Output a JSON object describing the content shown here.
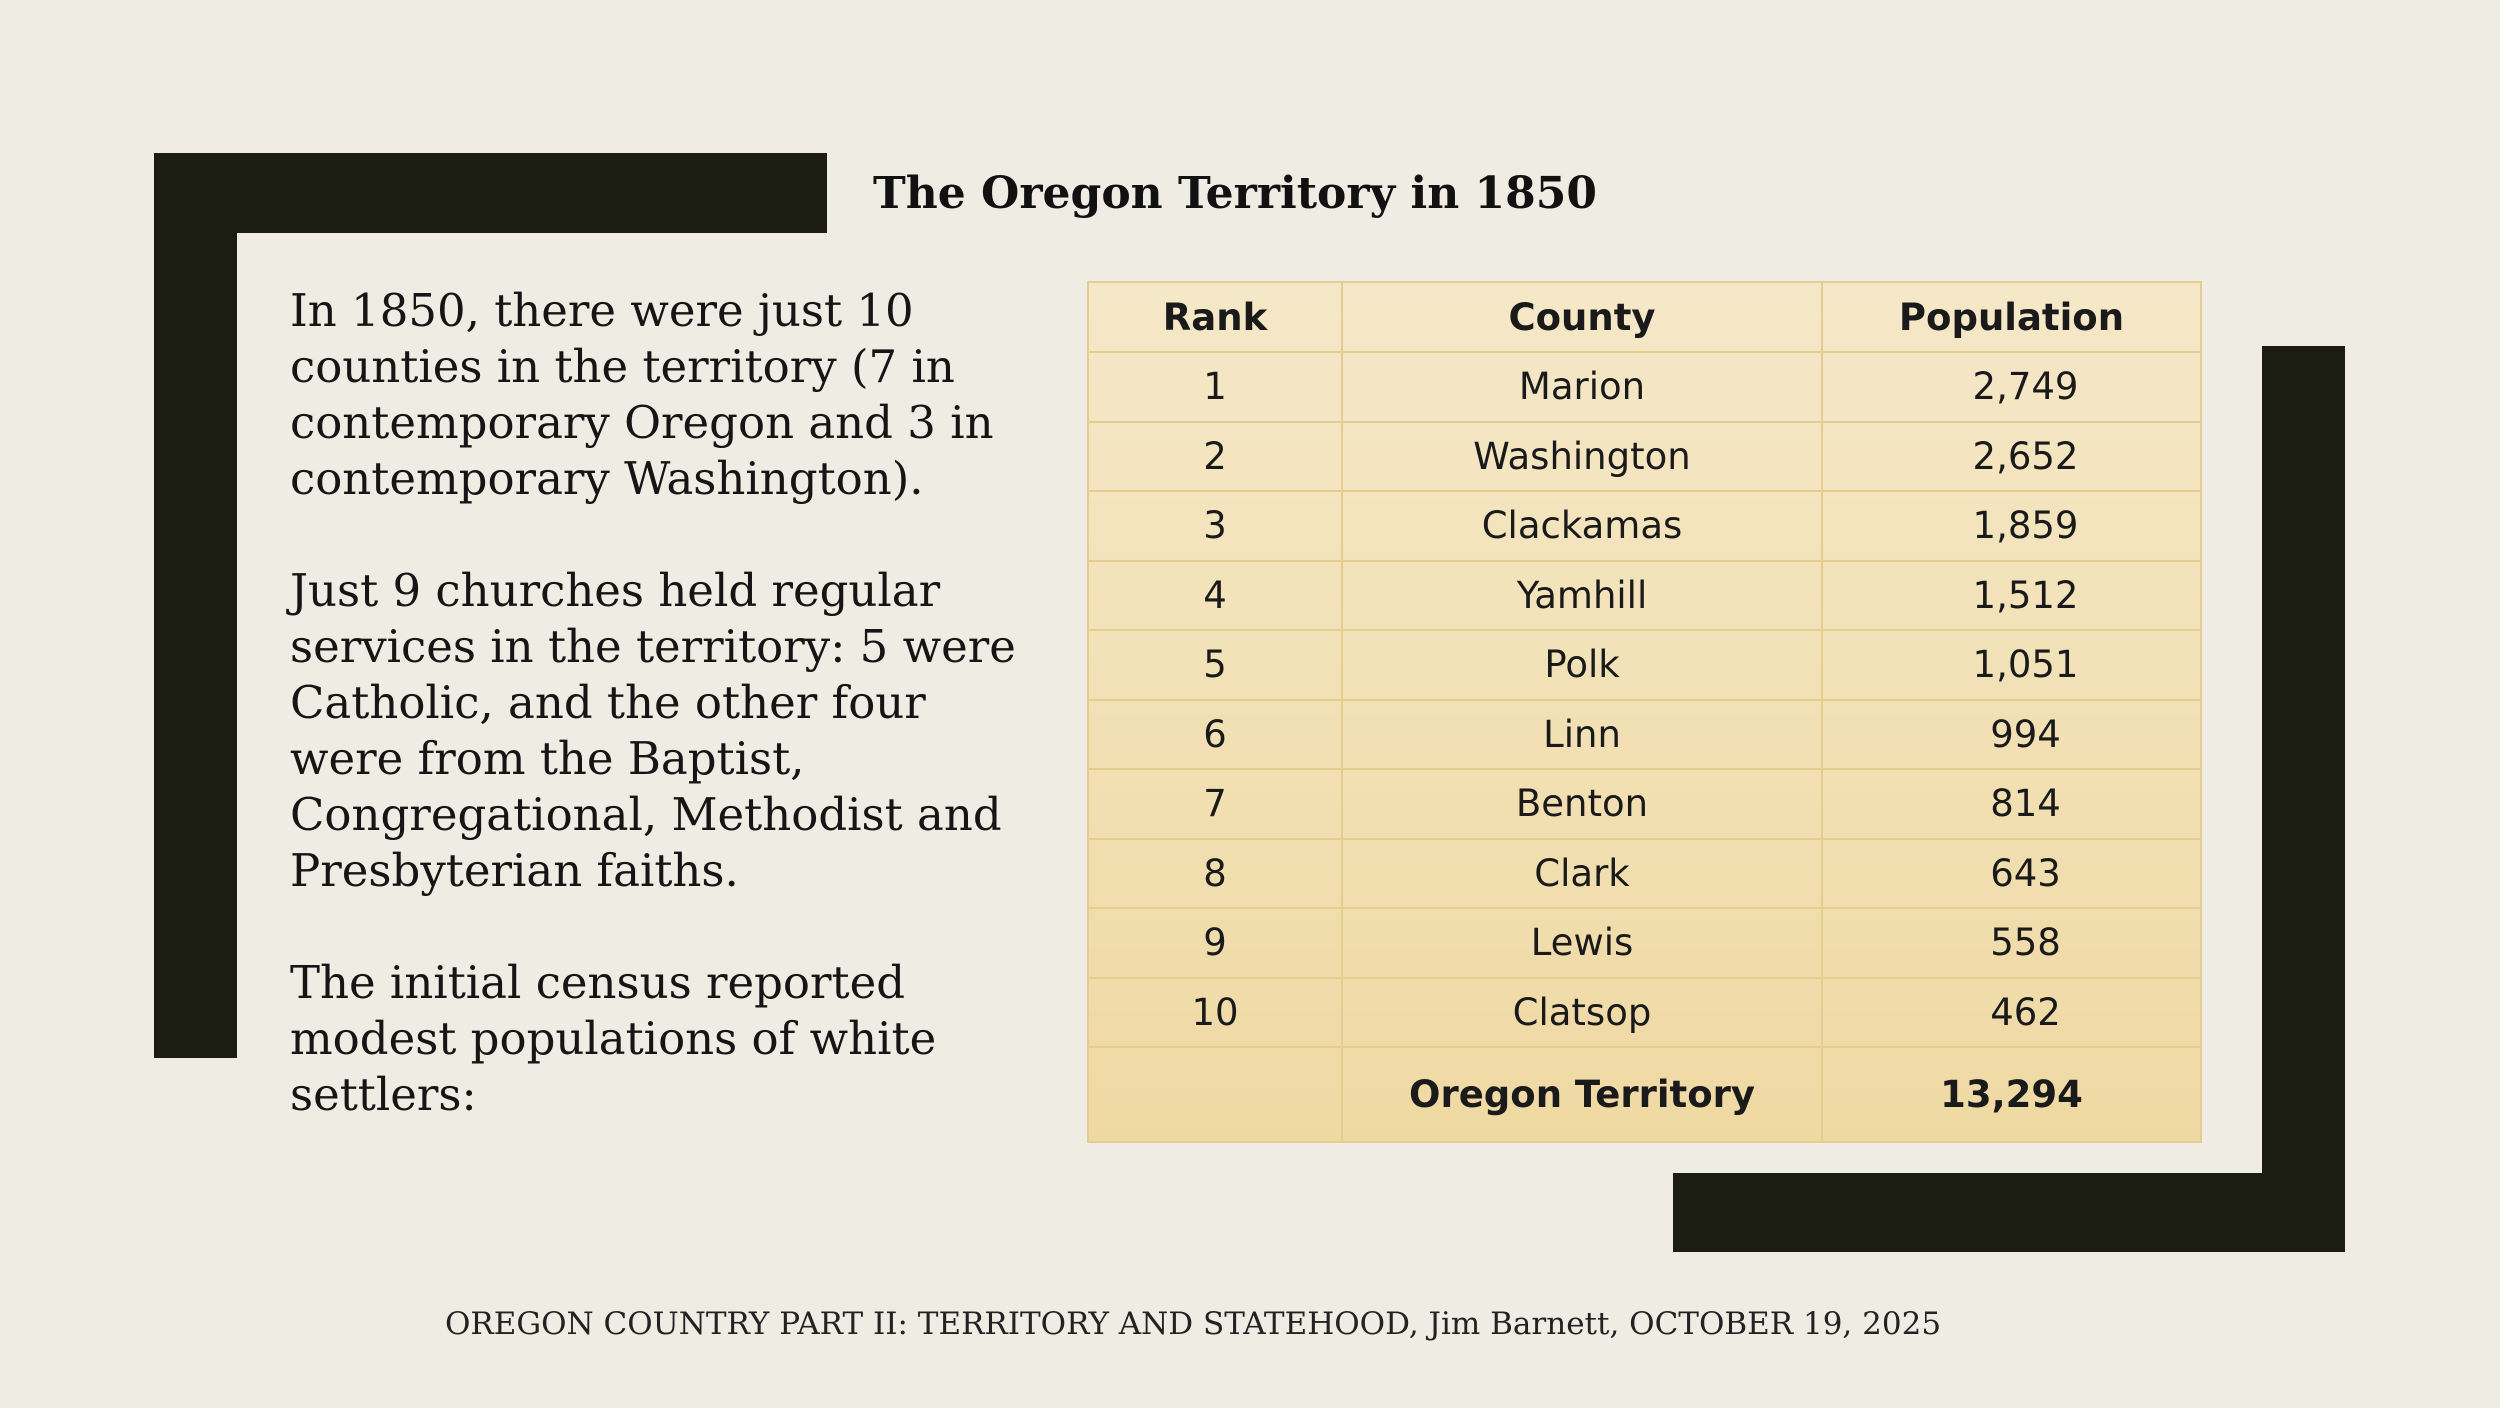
{
  "slide": {
    "title": "The Oregon Territory in 1850",
    "paragraphs": [
      "In 1850, there were just 10 counties in the territory (7 in contemporary Oregon and 3 in contemporary Washington).",
      "Just 9 churches held regular services in the territory:  5 were Catholic, and the other four were from the Baptist, Congregational, Methodist and Presbyterian faiths.",
      "The initial census reported modest populations of white settlers:"
    ],
    "footer": "OREGON COUNTRY PART II: TERRITORY AND STATEHOOD, Jim Barnett, OCTOBER 19, 2025"
  },
  "table": {
    "headers": [
      "Rank",
      "County",
      "Population"
    ],
    "rows": [
      [
        "1",
        "Marion",
        "2,749"
      ],
      [
        "2",
        "Washington",
        "2,652"
      ],
      [
        "3",
        "Clackamas",
        "1,859"
      ],
      [
        "4",
        "Yamhill",
        "1,512"
      ],
      [
        "5",
        "Polk",
        "1,051"
      ],
      [
        "6",
        "Linn",
        "994"
      ],
      [
        "7",
        "Benton",
        "814"
      ],
      [
        "8",
        "Clark",
        "643"
      ],
      [
        "9",
        "Lewis",
        "558"
      ],
      [
        "10",
        "Clatsop",
        "462"
      ]
    ],
    "total": {
      "label": "Oregon Territory",
      "value": "13,294"
    }
  },
  "colors": {
    "background": "#efece4",
    "bracket": "#1b1c12",
    "table_fill_top": "#f5e8c8",
    "table_fill_bottom": "#efd9a3",
    "table_border": "#e7cc90"
  }
}
